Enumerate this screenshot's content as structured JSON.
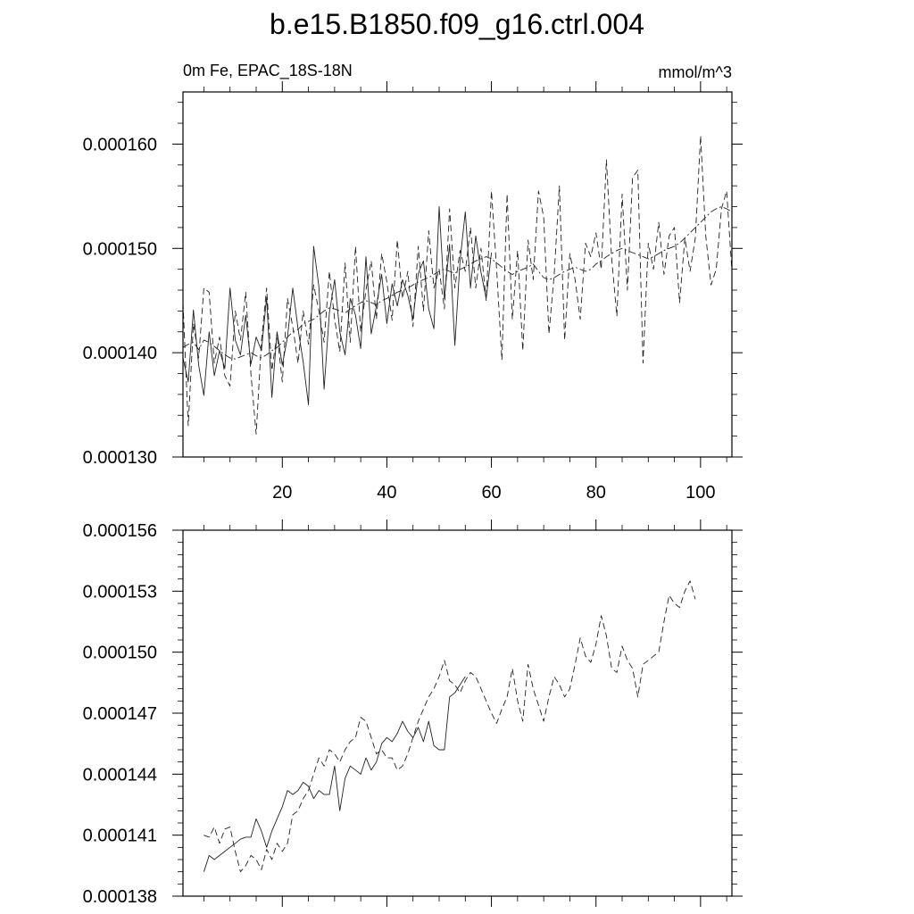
{
  "page": {
    "title": "b.e15.B1850.f09_g16.ctrl.004"
  },
  "chart_data": [
    {
      "type": "line",
      "title": "b.e15.B1850.f09_g16.ctrl.004",
      "left_label": "0m Fe, EPAC_18S-18N",
      "right_label": "mmol/m^3",
      "xlim": [
        1,
        106
      ],
      "ylim": [
        0.00013,
        0.000165
      ],
      "x_ticks": [
        20,
        40,
        60,
        80,
        100
      ],
      "x_tick_labels": [
        "20",
        "40",
        "60",
        "80",
        "100"
      ],
      "y_ticks": [
        0.00013,
        0.00014,
        0.00015,
        0.00016
      ],
      "y_tick_labels": [
        "0.000130",
        "0.000140",
        "0.000150",
        "0.000160"
      ],
      "grid": false,
      "series": [
        {
          "style": "solid",
          "x_start": 1,
          "values": [
            0.0001395,
            0.0001372,
            0.0001441,
            0.0001388,
            0.0001359,
            0.000142,
            0.0001378,
            0.0001402,
            0.0001385,
            0.0001462,
            0.0001412,
            0.0001398,
            0.0001436,
            0.0001389,
            0.0001415,
            0.0001402,
            0.0001453,
            0.0001357,
            0.000142,
            0.0001388,
            0.0001415,
            0.0001462,
            0.0001423,
            0.0001391,
            0.000135,
            0.0001502,
            0.0001463,
            0.0001365,
            0.0001438,
            0.000147,
            0.000142,
            0.0001398,
            0.0001452,
            0.0001436,
            0.0001404,
            0.0001492,
            0.0001418,
            0.0001445,
            0.0001475,
            0.0001428,
            0.0001466,
            0.0001445,
            0.000147,
            0.0001455,
            0.0001432,
            0.0001476,
            0.0001488,
            0.0001442,
            0.0001423,
            0.000154,
            0.0001452,
            0.0001504,
            0.0001407,
            0.0001488,
            0.0001535,
            0.0001462,
            0.0001512,
            0.0001477,
            0.0001452,
            0.0001496
          ]
        },
        {
          "style": "dashed",
          "x_start": 1,
          "values": [
            0.0001448,
            0.000133,
            0.0001428,
            0.0001395,
            0.0001462,
            0.0001458,
            0.000139,
            0.0001415,
            0.0001378,
            0.0001368,
            0.000144,
            0.0001412,
            0.0001458,
            0.000138,
            0.0001322,
            0.0001411,
            0.0001462,
            0.0001383,
            0.0001418,
            0.0001372,
            0.0001452,
            0.0001425,
            0.000139,
            0.000144,
            0.0001408,
            0.0001465,
            0.000144,
            0.000141,
            0.0001478,
            0.0001432,
            0.0001401,
            0.0001486,
            0.000141,
            0.0001502,
            0.000142,
            0.000146,
            0.0001488,
            0.0001432,
            0.0001495,
            0.0001468,
            0.0001431,
            0.0001508,
            0.0001452,
            0.0001478,
            0.0001425,
            0.0001502,
            0.000144,
            0.0001517,
            0.0001462,
            0.000148,
            0.0001442,
            0.0001538,
            0.0001462,
            0.0001498,
            0.0001478,
            0.000152,
            0.0001462,
            0.00015,
            0.000145,
            0.0001555,
            0.000148,
            0.0001393,
            0.0001552,
            0.0001432,
            0.0001498,
            0.0001402,
            0.0001508,
            0.000147,
            0.0001555,
            0.000153,
            0.0001418,
            0.0001475,
            0.000156,
            0.0001412,
            0.0001495,
            0.000147,
            0.0001432,
            0.0001505,
            0.0001492,
            0.0001515,
            0.000148,
            0.0001585,
            0.000149,
            0.0001435,
            0.0001552,
            0.000146,
            0.0001568,
            0.0001575,
            0.000139,
            0.0001505,
            0.000148,
            0.0001525,
            0.0001475,
            0.0001512,
            0.000152,
            0.0001448,
            0.000151,
            0.0001478,
            0.000151,
            0.0001608,
            0.0001512,
            0.0001465,
            0.000148,
            0.0001538,
            0.0001555,
            0.0001478
          ]
        },
        {
          "style": "dashdot",
          "x_start": 1,
          "values": [
            0.0001405,
            0.0001408,
            0.000141,
            0.0001403,
            0.0001412,
            0.000141,
            0.0001406,
            0.0001402,
            0.0001398,
            0.0001395,
            0.0001394,
            0.0001396,
            0.0001398,
            0.00014,
            0.0001397,
            0.0001395,
            0.0001398,
            0.0001402,
            0.0001405,
            0.000141,
            0.0001415,
            0.000142,
            0.0001422,
            0.0001428,
            0.000143,
            0.0001432,
            0.0001436,
            0.000144,
            0.0001443,
            0.0001442,
            0.000144,
            0.0001438,
            0.0001442,
            0.0001445,
            0.0001448,
            0.000145,
            0.0001448,
            0.0001446,
            0.000145,
            0.0001452,
            0.0001455,
            0.0001458,
            0.000146,
            0.0001462,
            0.0001465,
            0.0001468,
            0.000147,
            0.0001472,
            0.0001475,
            0.0001478,
            0.000148,
            0.0001478,
            0.0001476,
            0.000148,
            0.0001482,
            0.0001485,
            0.0001488,
            0.000149,
            0.0001492,
            0.000149,
            0.0001486,
            0.0001482,
            0.0001478,
            0.0001475,
            0.0001478,
            0.000148,
            0.0001482,
            0.0001485,
            0.0001478,
            0.0001472,
            0.000147,
            0.0001472,
            0.0001475,
            0.0001478,
            0.000148,
            0.0001482,
            0.000148,
            0.0001478,
            0.000148,
            0.0001485,
            0.0001488,
            0.0001492,
            0.0001495,
            0.0001498,
            0.00015,
            0.0001498,
            0.0001496,
            0.0001494,
            0.0001492,
            0.000149,
            0.0001492,
            0.0001495,
            0.0001498,
            0.00015,
            0.0001502,
            0.0001505,
            0.000151,
            0.0001515,
            0.000152,
            0.0001525,
            0.000153,
            0.0001535,
            0.0001538,
            0.000154,
            0.0001538,
            0.0001535
          ]
        }
      ]
    },
    {
      "type": "line",
      "xlim": [
        1,
        106
      ],
      "ylim": [
        0.000138,
        0.000156
      ],
      "x_ticks": [
        20,
        40,
        60,
        80,
        100
      ],
      "y_ticks": [
        0.000138,
        0.000141,
        0.000144,
        0.000147,
        0.00015,
        0.000153,
        0.000156
      ],
      "y_tick_labels": [
        "0.000138",
        "0.000141",
        "0.000144",
        "0.000147",
        "0.000150",
        "0.000153",
        "0.000156"
      ],
      "grid": false,
      "series": [
        {
          "style": "solid",
          "x_start": 5,
          "values": [
            0.0001392,
            0.00014,
            0.0001398,
            0.00014,
            0.0001402,
            0.0001404,
            0.0001406,
            0.0001408,
            0.0001409,
            0.0001409,
            0.0001418,
            0.0001412,
            0.0001404,
            0.0001412,
            0.0001418,
            0.0001424,
            0.0001432,
            0.000143,
            0.0001432,
            0.0001436,
            0.0001434,
            0.0001428,
            0.0001432,
            0.000143,
            0.000143,
            0.0001444,
            0.0001422,
            0.0001438,
            0.0001444,
            0.0001442,
            0.000144,
            0.0001448,
            0.0001442,
            0.0001446,
            0.0001455,
            0.0001458,
            0.0001456,
            0.000146,
            0.0001466,
            0.0001461,
            0.0001458,
            0.0001463,
            0.0001456,
            0.0001466,
            0.0001454,
            0.0001452,
            0.0001452,
            0.0001478,
            0.000148,
            0.0001484,
            0.0001488
          ]
        },
        {
          "style": "dashed",
          "x_start": 5,
          "values": [
            0.000141,
            0.0001409,
            0.0001414,
            0.0001406,
            0.0001413,
            0.0001414,
            0.0001402,
            0.0001392,
            0.0001395,
            0.00014,
            0.0001398,
            0.0001393,
            0.0001403,
            0.0001398,
            0.0001406,
            0.0001402,
            0.0001406,
            0.000142,
            0.0001422,
            0.0001428,
            0.0001432,
            0.000144,
            0.0001448,
            0.0001444,
            0.0001452,
            0.000145,
            0.0001446,
            0.0001452,
            0.0001456,
            0.0001458,
            0.0001468,
            0.0001466,
            0.0001458,
            0.000145,
            0.0001452,
            0.0001448,
            0.0001448,
            0.0001442,
            0.0001444,
            0.000145,
            0.0001458,
            0.0001466,
            0.0001472,
            0.0001478,
            0.0001482,
            0.0001488,
            0.0001496,
            0.0001486,
            0.0001484,
            0.000148,
            0.0001486,
            0.000149,
            0.0001488,
            0.0001482,
            0.0001476,
            0.000147,
            0.0001465,
            0.0001472,
            0.0001478,
            0.0001492,
            0.0001476,
            0.0001466,
            0.0001494,
            0.0001482,
            0.0001474,
            0.0001466,
            0.0001478,
            0.0001488,
            0.0001484,
            0.0001478,
            0.0001482,
            0.0001494,
            0.0001507,
            0.0001498,
            0.0001495,
            0.0001504,
            0.0001518,
            0.0001508,
            0.0001492,
            0.000149,
            0.0001503,
            0.0001496,
            0.0001492,
            0.0001478,
            0.0001494,
            0.0001496,
            0.0001498,
            0.00015,
            0.0001515,
            0.0001528,
            0.0001524,
            0.0001522,
            0.000153,
            0.0001535,
            0.0001526
          ]
        }
      ]
    }
  ]
}
